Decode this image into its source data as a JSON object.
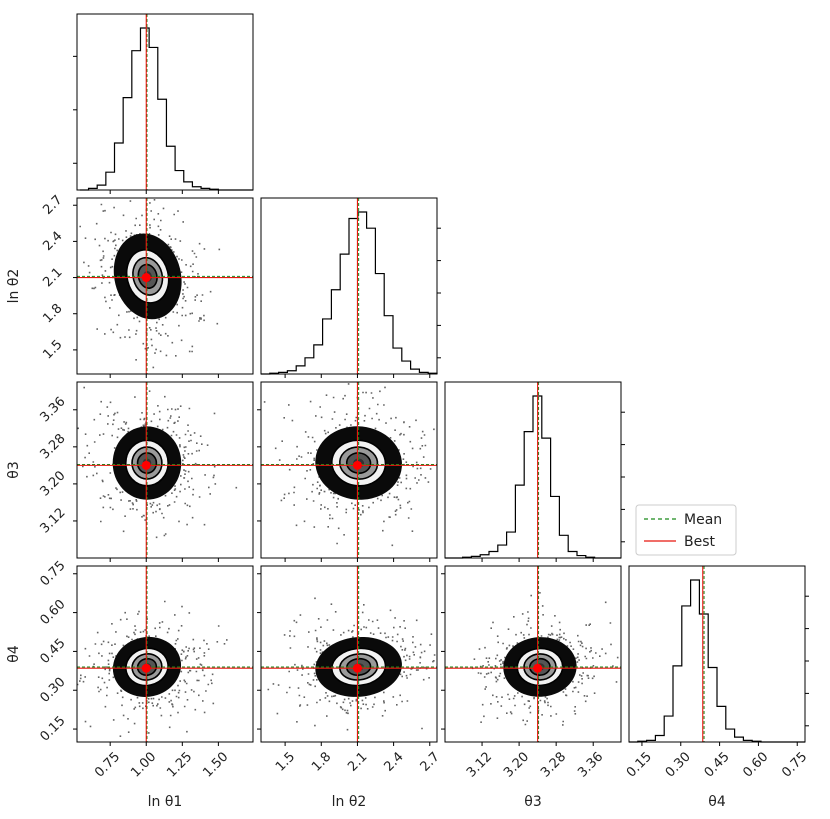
{
  "chart_data": {
    "type": "corner",
    "parameters": [
      {
        "key": "p1",
        "label": "ln θ1",
        "range": [
          0.52,
          1.74
        ],
        "ticks": [
          0.75,
          1.0,
          1.25,
          1.5
        ],
        "tick_labels": [
          "0.75",
          "1.00",
          "1.25",
          "1.50"
        ],
        "mean": 1.005,
        "best": 1.0
      },
      {
        "key": "p2",
        "label": "ln θ2",
        "range": [
          1.3,
          2.76
        ],
        "ticks": [
          1.5,
          1.8,
          2.1,
          2.4,
          2.7
        ],
        "tick_labels": [
          "1.5",
          "1.8",
          "2.1",
          "2.4",
          "2.7"
        ],
        "mean": 2.11,
        "best": 2.1
      },
      {
        "key": "p3",
        "label": "θ3",
        "range": [
          3.04,
          3.42
        ],
        "ticks": [
          3.12,
          3.2,
          3.28,
          3.36
        ],
        "tick_labels": [
          "3.12",
          "3.20",
          "3.28",
          "3.36"
        ],
        "mean": 3.242,
        "best": 3.24
      },
      {
        "key": "p4",
        "label": "θ4",
        "range": [
          0.1,
          0.78
        ],
        "ticks": [
          0.15,
          0.3,
          0.45,
          0.6,
          0.75
        ],
        "tick_labels": [
          "0.15",
          "0.30",
          "0.45",
          "0.60",
          "0.75"
        ],
        "mean": 0.39,
        "best": 0.385
      }
    ],
    "histograms": [
      {
        "param": "p1",
        "bins": [
          0.54,
          0.6,
          0.66,
          0.72,
          0.78,
          0.84,
          0.9,
          0.96,
          1.02,
          1.08,
          1.14,
          1.2,
          1.26,
          1.32,
          1.38,
          1.44,
          1.5,
          1.56,
          1.62,
          1.68,
          1.74
        ],
        "counts": [
          0,
          0.01,
          0.03,
          0.11,
          0.29,
          0.57,
          0.86,
          1.0,
          0.88,
          0.56,
          0.27,
          0.12,
          0.05,
          0.02,
          0.01,
          0.005,
          0,
          0,
          0,
          0
        ]
      },
      {
        "param": "p2",
        "bins": [
          1.3,
          1.373,
          1.446,
          1.519,
          1.592,
          1.665,
          1.738,
          1.811,
          1.884,
          1.957,
          2.03,
          2.103,
          2.176,
          2.249,
          2.322,
          2.395,
          2.468,
          2.541,
          2.614,
          2.687,
          2.76
        ],
        "counts": [
          0,
          0.005,
          0.01,
          0.02,
          0.05,
          0.1,
          0.18,
          0.34,
          0.52,
          0.74,
          0.96,
          1.0,
          0.9,
          0.62,
          0.36,
          0.16,
          0.08,
          0.03,
          0.01,
          0.005
        ]
      },
      {
        "param": "p3",
        "bins": [
          3.04,
          3.059,
          3.078,
          3.097,
          3.116,
          3.135,
          3.154,
          3.173,
          3.192,
          3.211,
          3.23,
          3.249,
          3.268,
          3.287,
          3.306,
          3.325,
          3.344,
          3.363,
          3.382,
          3.401,
          3.42
        ],
        "counts": [
          0,
          0,
          0.005,
          0.01,
          0.02,
          0.04,
          0.08,
          0.16,
          0.45,
          0.78,
          1.0,
          0.74,
          0.38,
          0.14,
          0.04,
          0.015,
          0.005,
          0,
          0,
          0
        ]
      },
      {
        "param": "p4",
        "bins": [
          0.1,
          0.134,
          0.168,
          0.202,
          0.236,
          0.27,
          0.304,
          0.338,
          0.372,
          0.406,
          0.44,
          0.474,
          0.508,
          0.542,
          0.576,
          0.61,
          0.644,
          0.678,
          0.712,
          0.746,
          0.78
        ],
        "counts": [
          0,
          0.005,
          0.01,
          0.04,
          0.16,
          0.47,
          0.84,
          1.0,
          0.79,
          0.46,
          0.22,
          0.08,
          0.03,
          0.01,
          0.005,
          0,
          0,
          0,
          0,
          0
        ]
      }
    ],
    "scatter_panels": [
      {
        "x": "p1",
        "y": "p2",
        "cloud": {
          "cx": 1.01,
          "cy": 2.11,
          "rx": 0.32,
          "ry": 0.5,
          "tilt": 0.5
        },
        "contour_sigmas": [
          0.6,
          0.95,
          1.35
        ]
      },
      {
        "x": "p1",
        "y": "p3",
        "cloud": {
          "cx": 1.005,
          "cy": 3.245,
          "rx": 0.33,
          "ry": 0.11,
          "tilt": 0.0
        },
        "contour_sigmas": [
          0.6,
          0.95,
          1.35
        ]
      },
      {
        "x": "p2",
        "y": "p3",
        "cloud": {
          "cx": 2.11,
          "cy": 3.245,
          "rx": 0.5,
          "ry": 0.11,
          "tilt": -0.2
        },
        "contour_sigmas": [
          0.6,
          0.95,
          1.35
        ]
      },
      {
        "x": "p1",
        "y": "p4",
        "cloud": {
          "cx": 1.005,
          "cy": 0.39,
          "rx": 0.33,
          "ry": 0.16,
          "tilt": 0.45
        },
        "contour_sigmas": [
          0.6,
          0.95,
          1.35
        ]
      },
      {
        "x": "p2",
        "y": "p4",
        "cloud": {
          "cx": 2.11,
          "cy": 0.39,
          "rx": 0.5,
          "ry": 0.16,
          "tilt": 0.2
        },
        "contour_sigmas": [
          0.6,
          0.95,
          1.35
        ]
      },
      {
        "x": "p3",
        "y": "p4",
        "cloud": {
          "cx": 3.245,
          "cy": 0.39,
          "rx": 0.11,
          "ry": 0.16,
          "tilt": 0.1
        },
        "contour_sigmas": [
          0.6,
          0.95,
          1.35
        ]
      }
    ],
    "legend": {
      "placement": "right, beside the θ3 histogram",
      "entries": [
        {
          "label": "Mean",
          "color": "#1a8a1a",
          "style": "dashed"
        },
        {
          "label": "Best",
          "color": "#e8160e",
          "style": "solid"
        }
      ]
    },
    "colors": {
      "mean": "#1a8a1a",
      "best": "#e8160e",
      "best_marker": "#ff0000",
      "hist": "#000000",
      "frame": "#000000"
    }
  }
}
